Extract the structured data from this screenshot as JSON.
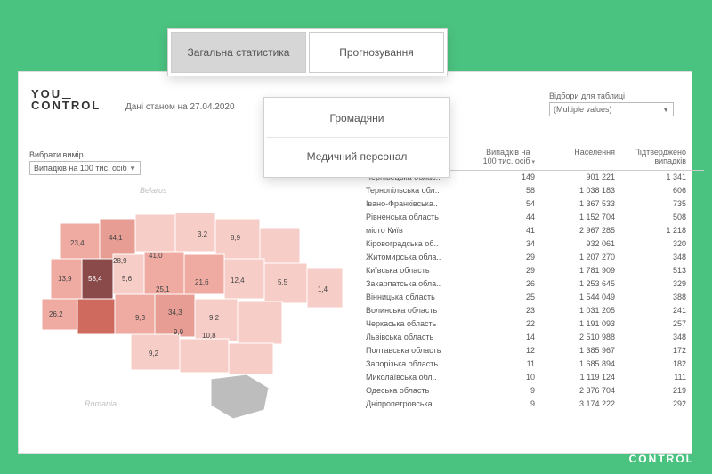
{
  "brand": {
    "line1": "YOU",
    "line2": "CONTROL"
  },
  "date_note": "Дані станом на 27.04.2020",
  "tabs": {
    "general": "Загальна статистика",
    "forecast": "Прогнозування"
  },
  "submenu": {
    "citizens": "Громадяни",
    "medstaff": "Медичний персонал"
  },
  "filter": {
    "label": "Відбори для таблиці",
    "value": "(Multiple values)"
  },
  "measure": {
    "label": "Вибрати вимір",
    "value": "Випадків на 100 тис. осіб"
  },
  "table": {
    "headers": {
      "name": "",
      "c1": "Випадків на 100 тис. осіб",
      "c2": "Населення",
      "c3": "Підтверджено випадків"
    },
    "rows": [
      {
        "name": "Чернівецька облас..",
        "c1": "149",
        "c2": "901 221",
        "c3": "1 341"
      },
      {
        "name": "Тернопільська обл..",
        "c1": "58",
        "c2": "1 038 183",
        "c3": "606"
      },
      {
        "name": "Івано-Франківська..",
        "c1": "54",
        "c2": "1 367 533",
        "c3": "735"
      },
      {
        "name": "Рівненська область",
        "c1": "44",
        "c2": "1 152 704",
        "c3": "508"
      },
      {
        "name": "місто Київ",
        "c1": "41",
        "c2": "2 967 285",
        "c3": "1 218"
      },
      {
        "name": "Кіровоградська об..",
        "c1": "34",
        "c2": "932 061",
        "c3": "320"
      },
      {
        "name": "Житомирська обла..",
        "c1": "29",
        "c2": "1 207 270",
        "c3": "348"
      },
      {
        "name": "Київська область",
        "c1": "29",
        "c2": "1 781 909",
        "c3": "513"
      },
      {
        "name": "Закарпатська обла..",
        "c1": "26",
        "c2": "1 253 645",
        "c3": "329"
      },
      {
        "name": "Вінницька область",
        "c1": "25",
        "c2": "1 544 049",
        "c3": "388"
      },
      {
        "name": "Волинська область",
        "c1": "23",
        "c2": "1 031 205",
        "c3": "241"
      },
      {
        "name": "Черкаська область",
        "c1": "22",
        "c2": "1 191 093",
        "c3": "257"
      },
      {
        "name": "Львівська область",
        "c1": "14",
        "c2": "2 510 988",
        "c3": "348"
      },
      {
        "name": "Полтавська область",
        "c1": "12",
        "c2": "1 385 967",
        "c3": "172"
      },
      {
        "name": "Запорізька область",
        "c1": "11",
        "c2": "1 685 894",
        "c3": "182"
      },
      {
        "name": "Миколаївська обл..",
        "c1": "10",
        "c2": "1 119 124",
        "c3": "111"
      },
      {
        "name": "Одеська область",
        "c1": "9",
        "c2": "2 376 704",
        "c3": "219"
      },
      {
        "name": "Дніпропетровська ..",
        "c1": "9",
        "c2": "3 174 222",
        "c3": "292"
      }
    ]
  },
  "map": {
    "neighbor_labels": {
      "belarus": "Belarus",
      "romania": "Romania"
    },
    "values": [
      "23,4",
      "44,1",
      "28,9",
      "41,0",
      "3,2",
      "8,9",
      "13,9",
      "58,4",
      "5,6",
      "25,1",
      "21,6",
      "12,4",
      "5,5",
      "1,4",
      "26,2",
      "34,3",
      "9,3",
      "9,2",
      "9,9",
      "10,8",
      "9,2"
    ],
    "colors": {
      "light": "#f7cdc7",
      "mid": "#efaaa1",
      "dark": "#cf6a5e",
      "darkest": "#8a4a4a",
      "gray": "#bdbdbd",
      "bg": "#ffffff"
    }
  }
}
